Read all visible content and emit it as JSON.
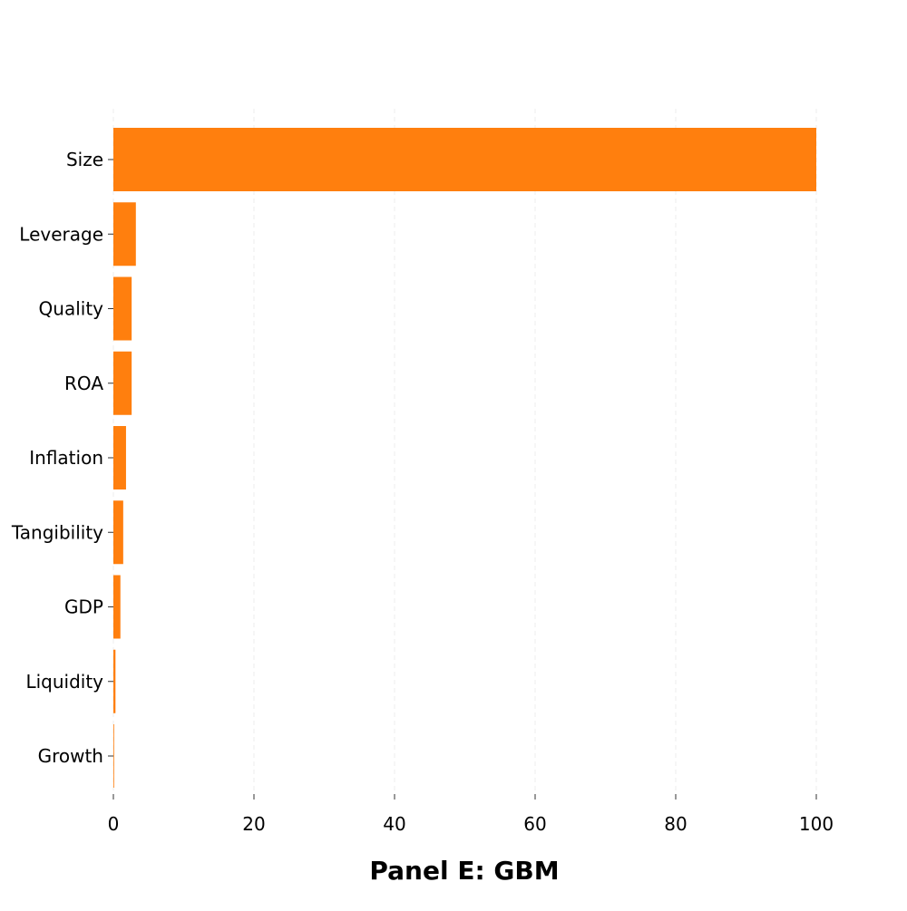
{
  "chart_data": {
    "type": "bar",
    "orientation": "horizontal",
    "title": "Panel E: GBM",
    "xlabel": "",
    "ylabel": "",
    "categories": [
      "Size",
      "Leverage",
      "Quality",
      "ROA",
      "Inflation",
      "Tangibility",
      "GDP",
      "Liquidity",
      "Growth"
    ],
    "values": [
      100,
      3.2,
      2.6,
      2.6,
      1.8,
      1.4,
      1.0,
      0.3,
      0.1
    ],
    "xlim": [
      0,
      100
    ],
    "xticks": [
      "0",
      "20",
      "40",
      "60",
      "80",
      "100"
    ],
    "grid": "vertical dashed",
    "legend": "none",
    "colors": {
      "bar": "#ff7f0e",
      "grid": "#eeeeee",
      "tick": "#333333"
    }
  }
}
